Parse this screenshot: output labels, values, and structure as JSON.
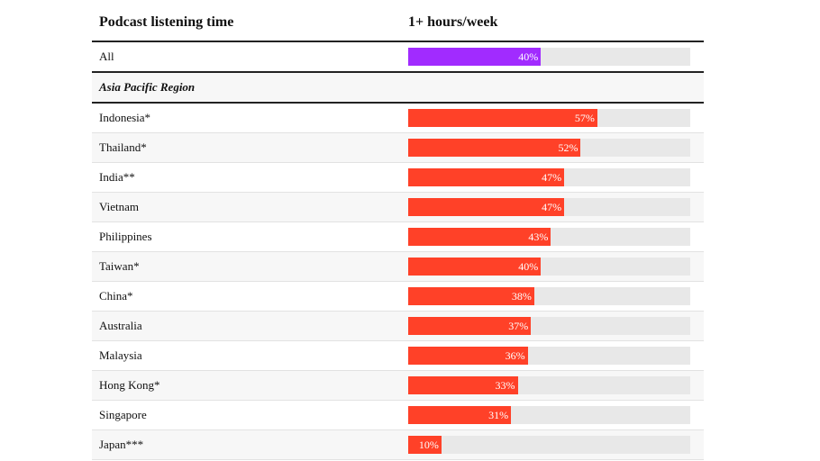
{
  "chart_data": {
    "type": "bar",
    "header": {
      "label_col": "Podcast listening time",
      "value_col": "1+ hours/week"
    },
    "total": {
      "label": "All",
      "value": 40,
      "value_text": "40%"
    },
    "group_title": "Asia Pacific Region",
    "rows": [
      {
        "label": "Indonesia*",
        "value": 57,
        "value_text": "57%"
      },
      {
        "label": "Thailand*",
        "value": 52,
        "value_text": "52%"
      },
      {
        "label": "India**",
        "value": 47,
        "value_text": "47%"
      },
      {
        "label": "Vietnam",
        "value": 47,
        "value_text": "47%"
      },
      {
        "label": "Philippines",
        "value": 43,
        "value_text": "43%"
      },
      {
        "label": "Taiwan*",
        "value": 40,
        "value_text": "40%"
      },
      {
        "label": "China*",
        "value": 38,
        "value_text": "38%"
      },
      {
        "label": "Australia",
        "value": 37,
        "value_text": "37%"
      },
      {
        "label": "Malaysia",
        "value": 36,
        "value_text": "36%"
      },
      {
        "label": "Hong Kong*",
        "value": 33,
        "value_text": "33%"
      },
      {
        "label": "Singapore",
        "value": 31,
        "value_text": "31%"
      },
      {
        "label": "Japan***",
        "value": 10,
        "value_text": "10%"
      }
    ],
    "xlim": [
      0,
      85
    ],
    "colors": {
      "total_bar": "#a12bff",
      "region_bar": "#ff4128",
      "track": "#e8e8e8"
    }
  }
}
